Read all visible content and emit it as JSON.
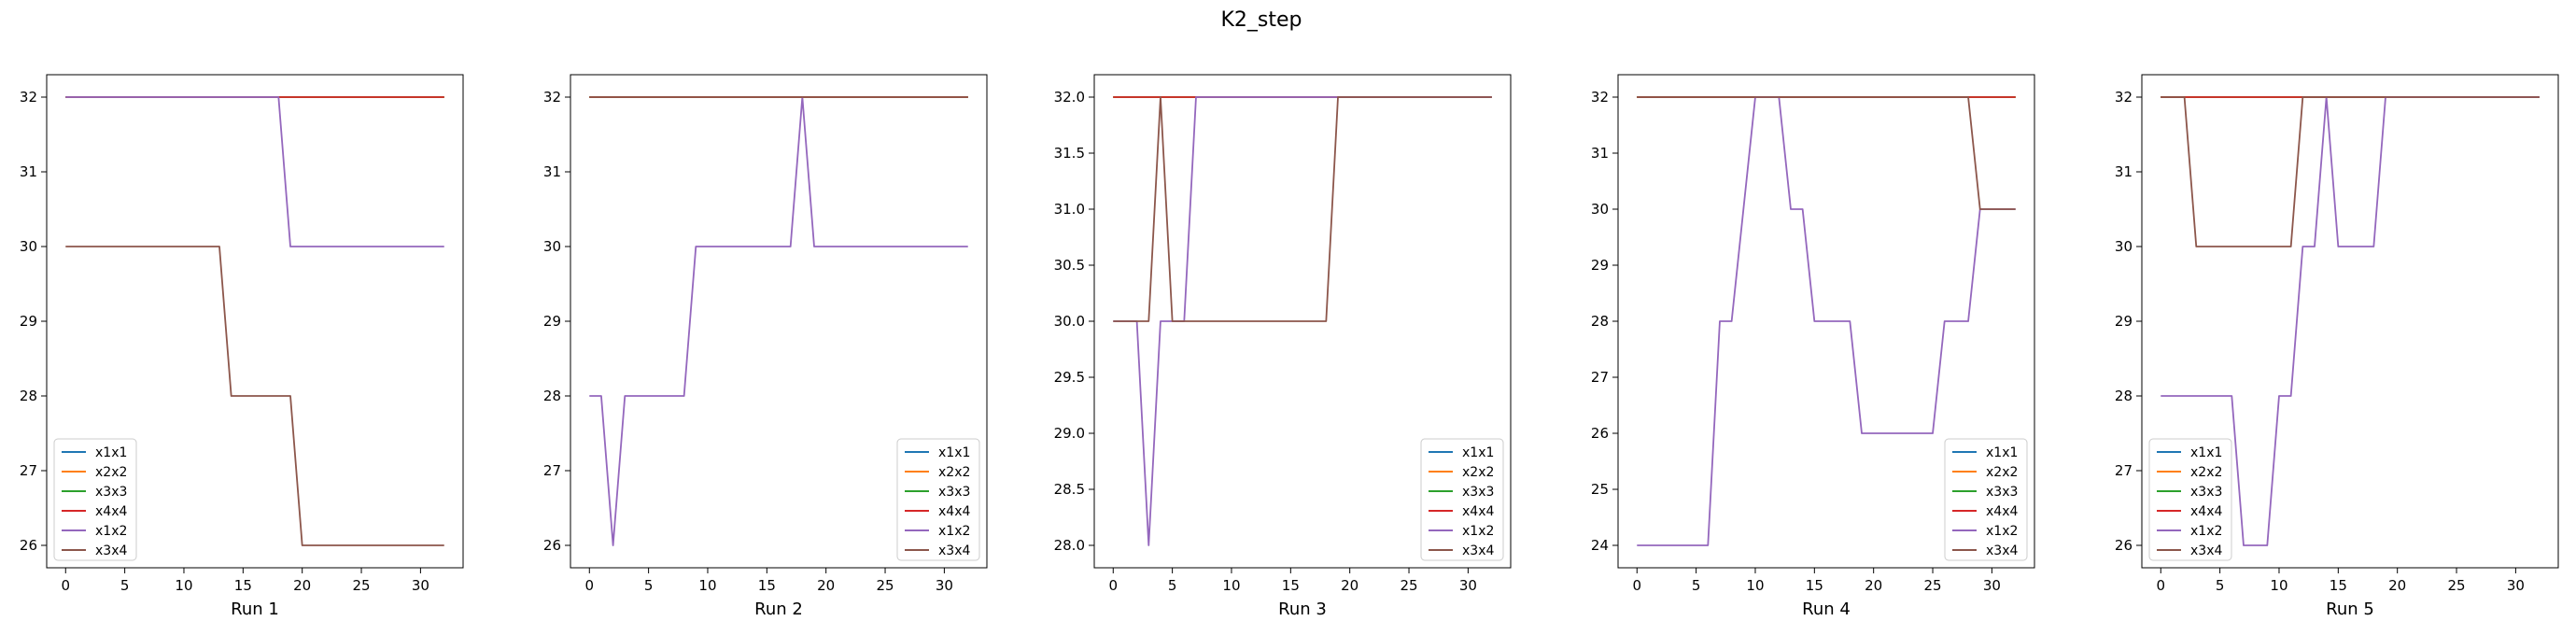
{
  "figure": {
    "title": "K2_step"
  },
  "colors": {
    "x1x1": "#1f77b4",
    "x2x2": "#ff7f0e",
    "x3x3": "#2ca02c",
    "x4x4": "#d62728",
    "x1x2": "#9467bd",
    "x3x4": "#8c564b"
  },
  "chart_data": [
    {
      "type": "line",
      "xlabel": "Run 1",
      "xlim": [
        -1.6,
        33.6
      ],
      "ylim": [
        25.7,
        32.3
      ],
      "xticks": [
        0,
        5,
        10,
        15,
        20,
        25,
        30
      ],
      "yticks": [
        26,
        27,
        28,
        29,
        30,
        31,
        32
      ],
      "ytick_labels": [
        "26",
        "27",
        "28",
        "29",
        "30",
        "31",
        "32"
      ],
      "legend": "lower-left",
      "series": [
        {
          "name": "x1x1",
          "points": [
            [
              0,
              32
            ],
            [
              32,
              32
            ]
          ]
        },
        {
          "name": "x2x2",
          "points": [
            [
              0,
              32
            ],
            [
              32,
              32
            ]
          ]
        },
        {
          "name": "x3x3",
          "points": [
            [
              0,
              32
            ],
            [
              32,
              32
            ]
          ]
        },
        {
          "name": "x4x4",
          "points": [
            [
              0,
              32
            ],
            [
              32,
              32
            ]
          ]
        },
        {
          "name": "x1x2",
          "points": [
            [
              0,
              32
            ],
            [
              18,
              32
            ],
            [
              19,
              30
            ],
            [
              32,
              30
            ]
          ]
        },
        {
          "name": "x3x4",
          "points": [
            [
              0,
              30
            ],
            [
              13,
              30
            ],
            [
              14,
              28
            ],
            [
              19,
              28
            ],
            [
              20,
              26
            ],
            [
              32,
              26
            ]
          ]
        }
      ]
    },
    {
      "type": "line",
      "xlabel": "Run 2",
      "xlim": [
        -1.6,
        33.6
      ],
      "ylim": [
        25.7,
        32.3
      ],
      "xticks": [
        0,
        5,
        10,
        15,
        20,
        25,
        30
      ],
      "yticks": [
        26,
        27,
        28,
        29,
        30,
        31,
        32
      ],
      "ytick_labels": [
        "26",
        "27",
        "28",
        "29",
        "30",
        "31",
        "32"
      ],
      "legend": "lower-right",
      "series": [
        {
          "name": "x1x1",
          "points": [
            [
              0,
              32
            ],
            [
              32,
              32
            ]
          ]
        },
        {
          "name": "x2x2",
          "points": [
            [
              0,
              32
            ],
            [
              32,
              32
            ]
          ]
        },
        {
          "name": "x3x3",
          "points": [
            [
              0,
              32
            ],
            [
              32,
              32
            ]
          ]
        },
        {
          "name": "x4x4",
          "points": [
            [
              0,
              32
            ],
            [
              32,
              32
            ]
          ]
        },
        {
          "name": "x1x2",
          "points": [
            [
              0,
              28
            ],
            [
              1,
              28
            ],
            [
              2,
              26
            ],
            [
              3,
              28
            ],
            [
              8,
              28
            ],
            [
              9,
              30
            ],
            [
              17,
              30
            ],
            [
              18,
              32
            ],
            [
              19,
              30
            ],
            [
              32,
              30
            ]
          ]
        },
        {
          "name": "x3x4",
          "points": [
            [
              0,
              32
            ],
            [
              32,
              32
            ]
          ]
        }
      ]
    },
    {
      "type": "line",
      "xlabel": "Run 3",
      "xlim": [
        -1.6,
        33.6
      ],
      "ylim": [
        27.8,
        32.2
      ],
      "xticks": [
        0,
        5,
        10,
        15,
        20,
        25,
        30
      ],
      "yticks": [
        28,
        28.5,
        29,
        29.5,
        30,
        30.5,
        31,
        31.5,
        32
      ],
      "ytick_labels": [
        "28.0",
        "28.5",
        "29.0",
        "29.5",
        "30.0",
        "30.5",
        "31.0",
        "31.5",
        "32.0"
      ],
      "legend": "lower-right",
      "series": [
        {
          "name": "x1x1",
          "points": [
            [
              0,
              32
            ],
            [
              32,
              32
            ]
          ]
        },
        {
          "name": "x2x2",
          "points": [
            [
              0,
              32
            ],
            [
              32,
              32
            ]
          ]
        },
        {
          "name": "x3x3",
          "points": [
            [
              0,
              32
            ],
            [
              32,
              32
            ]
          ]
        },
        {
          "name": "x4x4",
          "points": [
            [
              0,
              32
            ],
            [
              32,
              32
            ]
          ]
        },
        {
          "name": "x1x2",
          "points": [
            [
              0,
              30
            ],
            [
              2,
              30
            ],
            [
              3,
              28
            ],
            [
              4,
              30
            ],
            [
              6,
              30
            ],
            [
              7,
              32
            ],
            [
              32,
              32
            ]
          ]
        },
        {
          "name": "x3x4",
          "points": [
            [
              0,
              30
            ],
            [
              3,
              30
            ],
            [
              4,
              32
            ],
            [
              5,
              30
            ],
            [
              18,
              30
            ],
            [
              19,
              32
            ],
            [
              32,
              32
            ]
          ]
        }
      ]
    },
    {
      "type": "line",
      "xlabel": "Run 4",
      "xlim": [
        -1.6,
        33.6
      ],
      "ylim": [
        23.6,
        32.4
      ],
      "xticks": [
        0,
        5,
        10,
        15,
        20,
        25,
        30
      ],
      "yticks": [
        24,
        25,
        26,
        27,
        28,
        29,
        30,
        31,
        32
      ],
      "ytick_labels": [
        "24",
        "25",
        "26",
        "27",
        "28",
        "29",
        "30",
        "31",
        "32"
      ],
      "legend": "lower-right",
      "series": [
        {
          "name": "x1x1",
          "points": [
            [
              0,
              32
            ],
            [
              32,
              32
            ]
          ]
        },
        {
          "name": "x2x2",
          "points": [
            [
              0,
              32
            ],
            [
              32,
              32
            ]
          ]
        },
        {
          "name": "x3x3",
          "points": [
            [
              0,
              32
            ],
            [
              32,
              32
            ]
          ]
        },
        {
          "name": "x4x4",
          "points": [
            [
              0,
              32
            ],
            [
              32,
              32
            ]
          ]
        },
        {
          "name": "x1x2",
          "points": [
            [
              0,
              24
            ],
            [
              6,
              24
            ],
            [
              7,
              28
            ],
            [
              8,
              28
            ],
            [
              10,
              32
            ],
            [
              12,
              32
            ],
            [
              13,
              30
            ],
            [
              14,
              30
            ],
            [
              15,
              28
            ],
            [
              18,
              28
            ],
            [
              19,
              26
            ],
            [
              25,
              26
            ],
            [
              26,
              28
            ],
            [
              28,
              28
            ],
            [
              29,
              30
            ],
            [
              32,
              30
            ]
          ]
        },
        {
          "name": "x3x4",
          "points": [
            [
              0,
              32
            ],
            [
              28,
              32
            ],
            [
              29,
              30
            ],
            [
              32,
              30
            ]
          ]
        }
      ]
    },
    {
      "type": "line",
      "xlabel": "Run 5",
      "xlim": [
        -1.6,
        33.6
      ],
      "ylim": [
        25.7,
        32.3
      ],
      "xticks": [
        0,
        5,
        10,
        15,
        20,
        25,
        30
      ],
      "yticks": [
        26,
        27,
        28,
        29,
        30,
        31,
        32
      ],
      "ytick_labels": [
        "26",
        "27",
        "28",
        "29",
        "30",
        "31",
        "32"
      ],
      "legend": "lower-left",
      "series": [
        {
          "name": "x1x1",
          "points": [
            [
              0,
              32
            ],
            [
              32,
              32
            ]
          ]
        },
        {
          "name": "x2x2",
          "points": [
            [
              0,
              32
            ],
            [
              32,
              32
            ]
          ]
        },
        {
          "name": "x3x3",
          "points": [
            [
              0,
              32
            ],
            [
              32,
              32
            ]
          ]
        },
        {
          "name": "x4x4",
          "points": [
            [
              0,
              32
            ],
            [
              32,
              32
            ]
          ]
        },
        {
          "name": "x1x2",
          "points": [
            [
              0,
              28
            ],
            [
              6,
              28
            ],
            [
              7,
              26
            ],
            [
              9,
              26
            ],
            [
              10,
              28
            ],
            [
              11,
              28
            ],
            [
              12,
              30
            ],
            [
              13,
              30
            ],
            [
              14,
              32
            ],
            [
              15,
              30
            ],
            [
              18,
              30
            ],
            [
              19,
              32
            ],
            [
              32,
              32
            ]
          ]
        },
        {
          "name": "x3x4",
          "points": [
            [
              0,
              32
            ],
            [
              2,
              32
            ],
            [
              3,
              30
            ],
            [
              11,
              30
            ],
            [
              12,
              32
            ],
            [
              32,
              32
            ]
          ]
        }
      ]
    }
  ]
}
